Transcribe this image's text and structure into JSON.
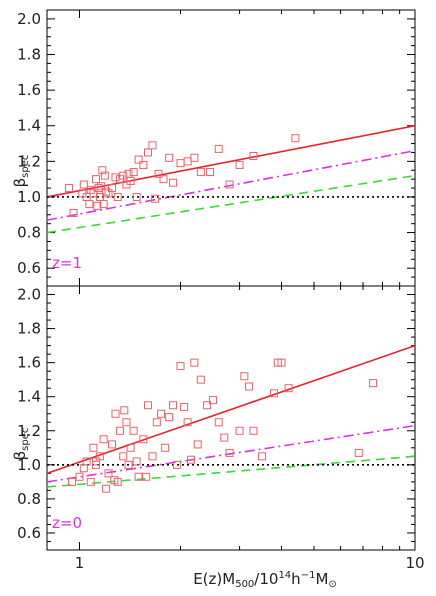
{
  "chart_data": {
    "type": "scatter",
    "xlabel": "E(z)M500/10^14 h^-1 M⊙",
    "xaxis": {
      "scale": "log",
      "xlim": [
        0.8,
        10
      ],
      "tick_labels": [
        "1",
        "10"
      ]
    },
    "panels": [
      {
        "id": "z1",
        "label": "z=1",
        "label_color": "#dd33dd",
        "ylabel": "βspec",
        "ylim": [
          0.5,
          2.05
        ],
        "yticks": [
          0.6,
          0.8,
          1.0,
          1.2,
          1.4,
          1.6,
          1.8,
          2.0
        ],
        "ytick_labels": [
          "0.6",
          "0.8",
          "1.0",
          "1.2",
          "1.4",
          "1.6",
          "1.8",
          "2.0"
        ],
        "lines": [
          {
            "style": "solid",
            "color": "#e8232a",
            "x": [
              0.8,
              10
            ],
            "y": [
              1.0,
              1.4
            ]
          },
          {
            "style": "dashdot",
            "color": "#dd33dd",
            "x": [
              0.8,
              10
            ],
            "y": [
              0.87,
              1.26
            ]
          },
          {
            "style": "dashed",
            "color": "#33dd33",
            "x": [
              0.8,
              10
            ],
            "y": [
              0.8,
              1.12
            ]
          },
          {
            "style": "dotted",
            "color": "#000000",
            "x": [
              0.8,
              10
            ],
            "y": [
              1.0,
              1.0
            ]
          }
        ],
        "points": {
          "marker": "open-square",
          "color": "#e8636a",
          "x": [
            0.93,
            0.96,
            1.03,
            1.05,
            1.07,
            1.08,
            1.1,
            1.12,
            1.14,
            1.15,
            1.17,
            1.18,
            1.2,
            1.22,
            1.25,
            1.28,
            1.3,
            1.32,
            1.35,
            1.38,
            1.4,
            1.42,
            1.45,
            1.48,
            1.5,
            1.55,
            1.6,
            1.65,
            1.68,
            1.72,
            1.78,
            1.85,
            1.9,
            2.0,
            2.1,
            2.2,
            2.3,
            2.45,
            2.6,
            2.8,
            3.0,
            3.3,
            4.4,
            1.13,
            1.16,
            1.19,
            1.02
          ],
          "y": [
            1.05,
            0.91,
            1.07,
            1.0,
            0.96,
            1.04,
            1.02,
            1.1,
            1.05,
            1.0,
            1.15,
            0.96,
            1.03,
            1.02,
            1.05,
            1.11,
            1.0,
            1.1,
            1.12,
            1.07,
            1.13,
            1.09,
            1.14,
            1.0,
            1.21,
            1.18,
            1.25,
            1.29,
            0.99,
            1.13,
            1.1,
            1.22,
            1.08,
            1.19,
            1.2,
            1.22,
            1.14,
            1.14,
            1.27,
            1.07,
            1.18,
            1.23,
            1.33,
            0.95,
            1.06,
            1.12,
            1.02
          ]
        }
      },
      {
        "id": "z0",
        "label": "z=0",
        "label_color": "#dd33dd",
        "ylabel": "βspec",
        "ylim": [
          0.5,
          2.05
        ],
        "yticks": [
          0.6,
          0.8,
          1.0,
          1.2,
          1.4,
          1.6,
          1.8,
          2.0
        ],
        "ytick_labels": [
          "0.6",
          "0.8",
          "1.0",
          "1.2",
          "1.4",
          "1.6",
          "1.8",
          "2.0"
        ],
        "lines": [
          {
            "style": "solid",
            "color": "#e8232a",
            "x": [
              0.8,
              10
            ],
            "y": [
              0.95,
              1.7
            ]
          },
          {
            "style": "dashdot",
            "color": "#dd33dd",
            "x": [
              0.8,
              10
            ],
            "y": [
              0.9,
              1.23
            ]
          },
          {
            "style": "dashed",
            "color": "#33dd33",
            "x": [
              0.8,
              10
            ],
            "y": [
              0.87,
              1.05
            ]
          },
          {
            "style": "dotted",
            "color": "#000000",
            "x": [
              0.8,
              10
            ],
            "y": [
              1.0,
              1.0
            ]
          }
        ],
        "points": {
          "marker": "open-square",
          "color": "#e8636a",
          "x": [
            0.95,
            1.0,
            1.03,
            1.05,
            1.08,
            1.1,
            1.12,
            1.15,
            1.18,
            1.2,
            1.22,
            1.25,
            1.28,
            1.3,
            1.32,
            1.35,
            1.38,
            1.4,
            1.42,
            1.45,
            1.48,
            1.5,
            1.55,
            1.6,
            1.65,
            1.7,
            1.75,
            1.8,
            1.85,
            1.9,
            1.95,
            2.0,
            2.05,
            2.1,
            2.15,
            2.2,
            2.3,
            2.4,
            2.5,
            2.6,
            2.7,
            2.8,
            3.0,
            3.1,
            3.2,
            3.3,
            3.5,
            3.8,
            3.9,
            4.0,
            4.2,
            6.8,
            7.5,
            1.12,
            1.27,
            1.36,
            1.58,
            2.25
          ],
          "y": [
            0.9,
            0.93,
            0.98,
            1.02,
            0.9,
            1.1,
            1.0,
            1.05,
            1.15,
            0.86,
            0.95,
            1.12,
            1.3,
            0.9,
            1.2,
            1.05,
            1.25,
            1.0,
            1.1,
            1.2,
            1.02,
            0.93,
            1.15,
            1.35,
            1.05,
            1.25,
            1.3,
            1.1,
            1.28,
            1.35,
            1.0,
            1.58,
            1.34,
            1.25,
            1.03,
            1.6,
            1.5,
            1.35,
            1.38,
            1.25,
            1.16,
            1.07,
            1.2,
            1.52,
            1.46,
            1.2,
            1.05,
            1.42,
            1.6,
            1.6,
            1.45,
            1.07,
            1.48,
            1.02,
            0.91,
            1.32,
            0.93,
            1.12
          ]
        }
      }
    ]
  }
}
